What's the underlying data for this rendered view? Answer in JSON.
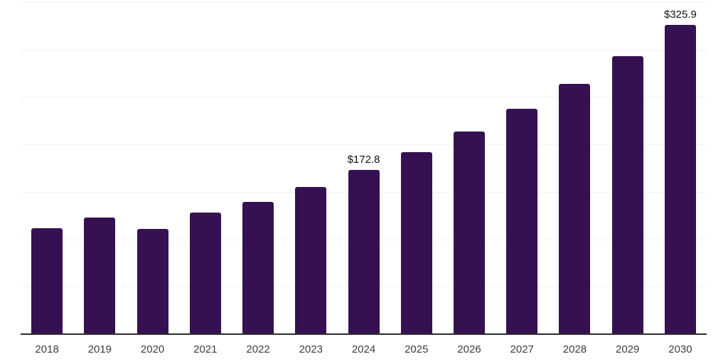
{
  "chart_data": {
    "type": "bar",
    "title": "",
    "xlabel": "",
    "ylabel": "",
    "categories": [
      "2018",
      "2019",
      "2020",
      "2021",
      "2022",
      "2023",
      "2024",
      "2025",
      "2026",
      "2027",
      "2028",
      "2029",
      "2030"
    ],
    "values": [
      111.9,
      123.1,
      111.1,
      128.0,
      139.2,
      155.5,
      172.8,
      192.1,
      213.6,
      237.4,
      263.9,
      293.2,
      325.9
    ],
    "data_labels": {
      "2024": "$172.8",
      "2030": "$325.9"
    },
    "ylim": [
      0,
      350
    ],
    "grid_step": 50,
    "grid": true,
    "legend": false,
    "y_tick_labels_visible": false,
    "colors": {
      "bar": "#351151",
      "axis": "#2d2d2d",
      "grid": "#f2f2f2",
      "data_label": "#111111",
      "tick_label": "#3d3d3d"
    }
  }
}
